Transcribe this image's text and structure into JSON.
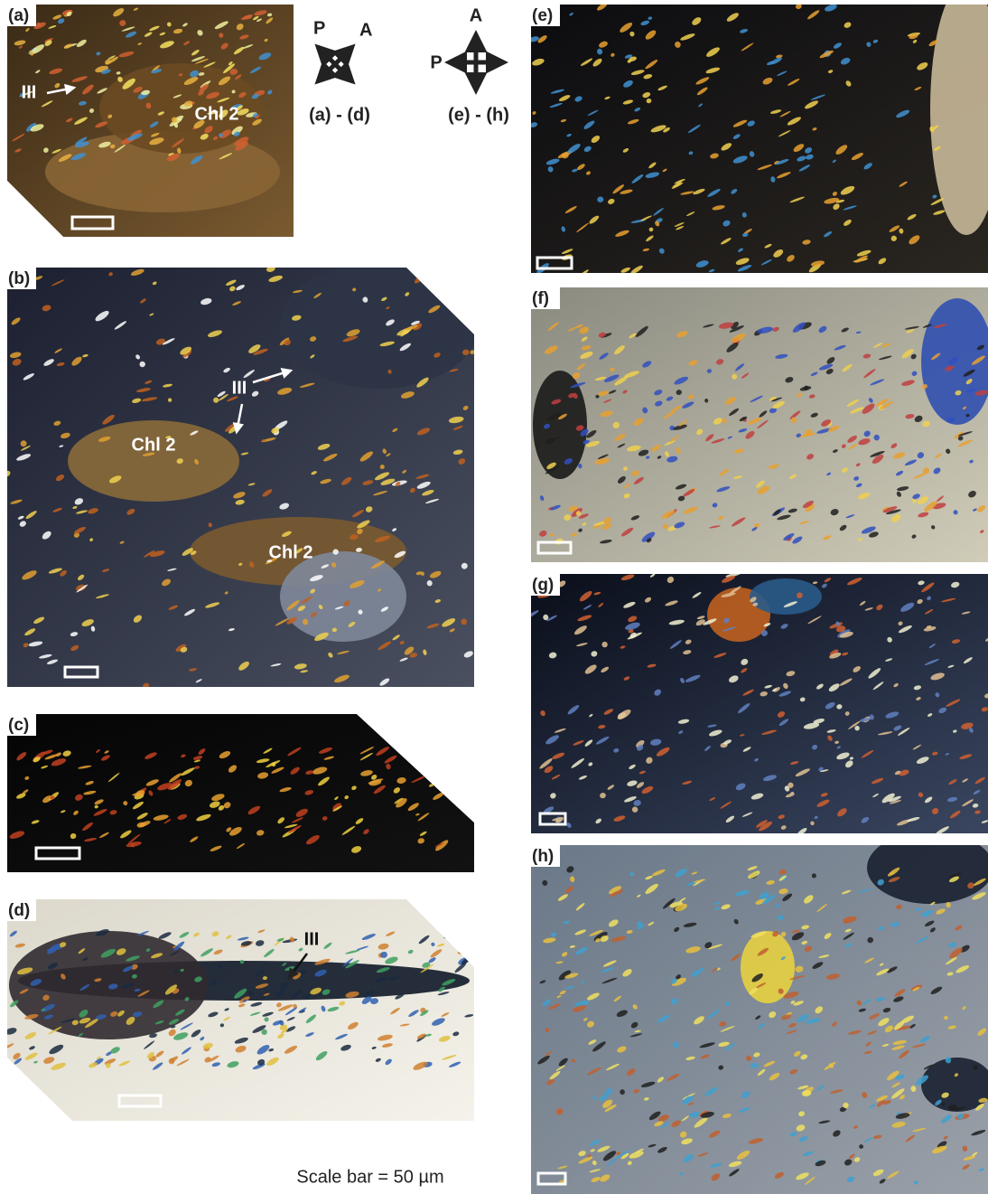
{
  "figure": {
    "panels": [
      {
        "label": "(a)",
        "annotations": [
          "III",
          "Chl 2"
        ]
      },
      {
        "label": "(b)",
        "annotations": [
          "III",
          "Chl 2",
          "Chl 2"
        ]
      },
      {
        "label": "(c)",
        "annotations": []
      },
      {
        "label": "(d)",
        "annotations": [
          "III"
        ]
      },
      {
        "label": "(e)",
        "annotations": []
      },
      {
        "label": "(f)",
        "annotations": []
      },
      {
        "label": "(g)",
        "annotations": []
      },
      {
        "label": "(h)",
        "annotations": []
      }
    ],
    "orientations": [
      {
        "polarizer": "P",
        "analyzer": "A",
        "applies_to": "(a) - (d)"
      },
      {
        "polarizer": "P",
        "analyzer": "A",
        "applies_to": "(e) - (h)"
      }
    ],
    "scale_note": "Scale bar = 50 µm"
  }
}
